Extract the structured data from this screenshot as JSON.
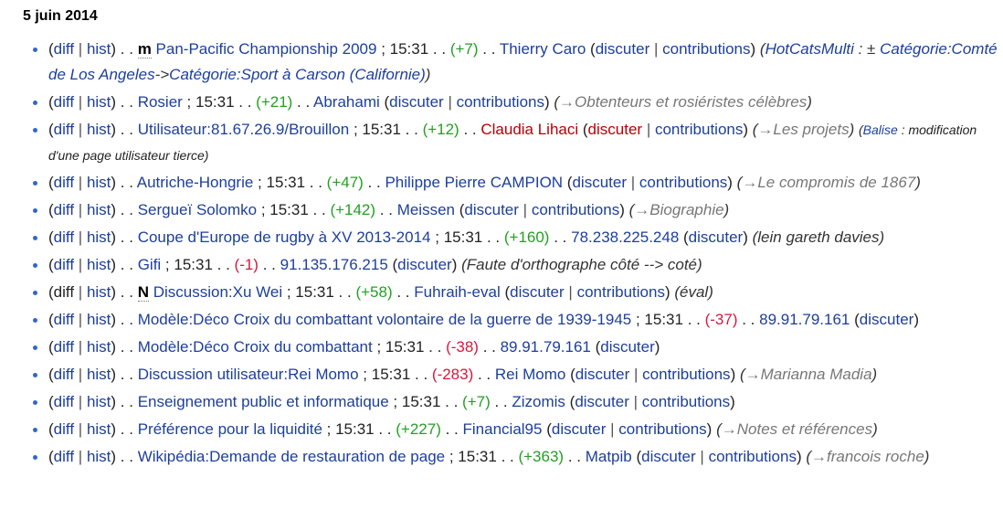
{
  "day": "5 juin 2014",
  "labels": {
    "diff": "diff",
    "hist": "hist",
    "talk": "discuter",
    "contribs": "contributions"
  },
  "entries": [
    {
      "flag": "m",
      "page": "Pan-Pacific Championship 2009",
      "time": "15:31",
      "delta": "(+7)",
      "user": "Thierry Caro",
      "summary_link": "HotCatsMulti",
      "summary_text": " : ± ",
      "cat1": "Catégorie:Comté de Los Angeles",
      "arrow": "->",
      "cat2": "Catégorie:Sport à Carson (Californie)"
    },
    {
      "page": "Rosier",
      "time": "15:31",
      "delta": "(+21)",
      "user": "Abrahami",
      "section": "→Obtenteurs et rosiéristes célèbres"
    },
    {
      "page": "Utilisateur:81.67.26.9/Brouillon",
      "time": "15:31",
      "delta": "(+12)",
      "user": "Claudia Lihaci",
      "section": "→Les projets",
      "tag_label": "Balise",
      "tag_text": "modification d'une page utilisateur tierce"
    },
    {
      "page": "Autriche-Hongrie",
      "time": "15:31",
      "delta": "(+47)",
      "user": "Philippe Pierre CAMPION",
      "section": "→Le compromis de 1867"
    },
    {
      "page": "Sergueï Solomko",
      "time": "15:31",
      "delta": "(+142)",
      "user": "Meissen",
      "section": "→Biographie"
    },
    {
      "page": "Coupe d'Europe de rugby à XV 2013-2014",
      "time": "15:31",
      "delta": "(+160)",
      "user": "78.238.225.248",
      "summary": "(lein gareth davies)"
    },
    {
      "page": "Gifi",
      "time": "15:31",
      "delta": "(-1)",
      "user": "91.135.176.215",
      "summary": "(Faute d'orthographe côté --> coté)"
    },
    {
      "flag": "N",
      "page": "Discussion:Xu Wei",
      "time": "15:31",
      "delta": "(+58)",
      "user": "Fuhraih-eval",
      "summary": "(éval)"
    },
    {
      "page": "Modèle:Déco Croix du combattant volontaire de la guerre de 1939-1945",
      "time": "15:31",
      "delta": "(-37)",
      "user": "89.91.79.161"
    },
    {
      "page": "Modèle:Déco Croix du combattant",
      "time": "15:31",
      "delta": "(-38)",
      "user": "89.91.79.161"
    },
    {
      "page": "Discussion utilisateur:Rei Momo",
      "time": "15:31",
      "delta": "(-283)",
      "user": "Rei Momo",
      "section": "→Marianna Madia"
    },
    {
      "page": "Enseignement public et informatique",
      "time": "15:31",
      "delta": "(+7)",
      "user": "Zizomis"
    },
    {
      "page": "Préférence pour la liquidité",
      "time": "15:31",
      "delta": "(+227)",
      "user": "Financial95",
      "section": "→Notes et références"
    },
    {
      "page": "Wikipédia:Demande de restauration de page",
      "time": "15:31",
      "delta": "(+363)",
      "user": "Matpib",
      "section": "→francois roche"
    }
  ]
}
